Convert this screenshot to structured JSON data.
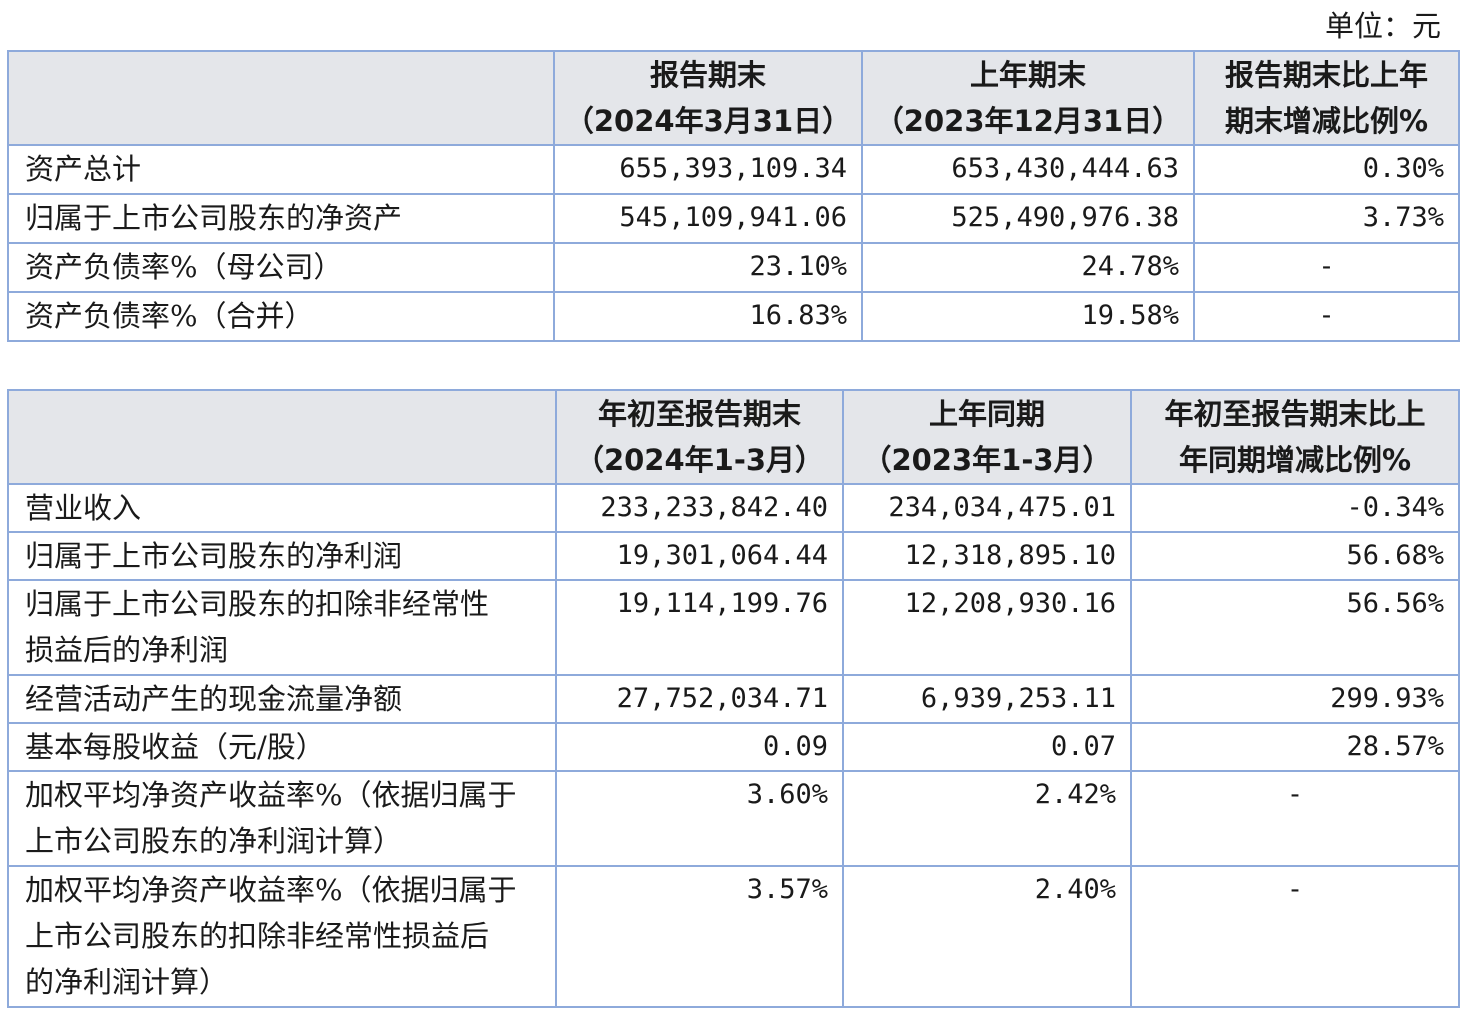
{
  "unit_label": "单位：元",
  "table1": {
    "headers": [
      {
        "line1": "报告期末",
        "line2": "（2024年3月31日）"
      },
      {
        "line1": "上年期末",
        "line2": "（2023年12月31日）"
      },
      {
        "line1": "报告期末比上年",
        "line2": "期末增减比例%"
      }
    ],
    "rows": [
      {
        "label": "资产总计",
        "current": "655,393,109.34",
        "prior": "653,430,444.63",
        "change": "0.30%"
      },
      {
        "label": "归属于上市公司股东的净资产",
        "current": "545,109,941.06",
        "prior": "525,490,976.38",
        "change": "3.73%"
      },
      {
        "label": "资产负债率%（母公司）",
        "current": "23.10%",
        "prior": "24.78%",
        "change": "-"
      },
      {
        "label": "资产负债率%（合并）",
        "current": "16.83%",
        "prior": "19.58%",
        "change": "-"
      }
    ]
  },
  "table2": {
    "headers": [
      {
        "line1": "年初至报告期末",
        "line2": "（2024年1-3月）"
      },
      {
        "line1": "上年同期",
        "line2": "（2023年1-3月）"
      },
      {
        "line1": "年初至报告期末比上",
        "line2": "年同期增减比例%"
      }
    ],
    "rows": [
      {
        "label_lines": [
          "营业收入"
        ],
        "current": "233,233,842.40",
        "prior": "234,034,475.01",
        "change": "-0.34%"
      },
      {
        "label_lines": [
          "归属于上市公司股东的净利润"
        ],
        "current": "19,301,064.44",
        "prior": "12,318,895.10",
        "change": "56.68%"
      },
      {
        "label_lines": [
          "归属于上市公司股东的扣除非经常性",
          "损益后的净利润"
        ],
        "current": "19,114,199.76",
        "prior": "12,208,930.16",
        "change": "56.56%"
      },
      {
        "label_lines": [
          "经营活动产生的现金流量净额"
        ],
        "current": "27,752,034.71",
        "prior": "6,939,253.11",
        "change": "299.93%"
      },
      {
        "label_lines": [
          "基本每股收益（元/股）"
        ],
        "current": "0.09",
        "prior": "0.07",
        "change": "28.57%"
      },
      {
        "label_lines": [
          "加权平均净资产收益率%（依据归属于",
          "上市公司股东的净利润计算）"
        ],
        "current": "3.60%",
        "prior": "2.42%",
        "change": "-"
      },
      {
        "label_lines": [
          "加权平均净资产收益率%（依据归属于",
          "上市公司股东的扣除非经常性损益后",
          "的净利润计算）"
        ],
        "current": "3.57%",
        "prior": "2.40%",
        "change": "-"
      }
    ]
  }
}
